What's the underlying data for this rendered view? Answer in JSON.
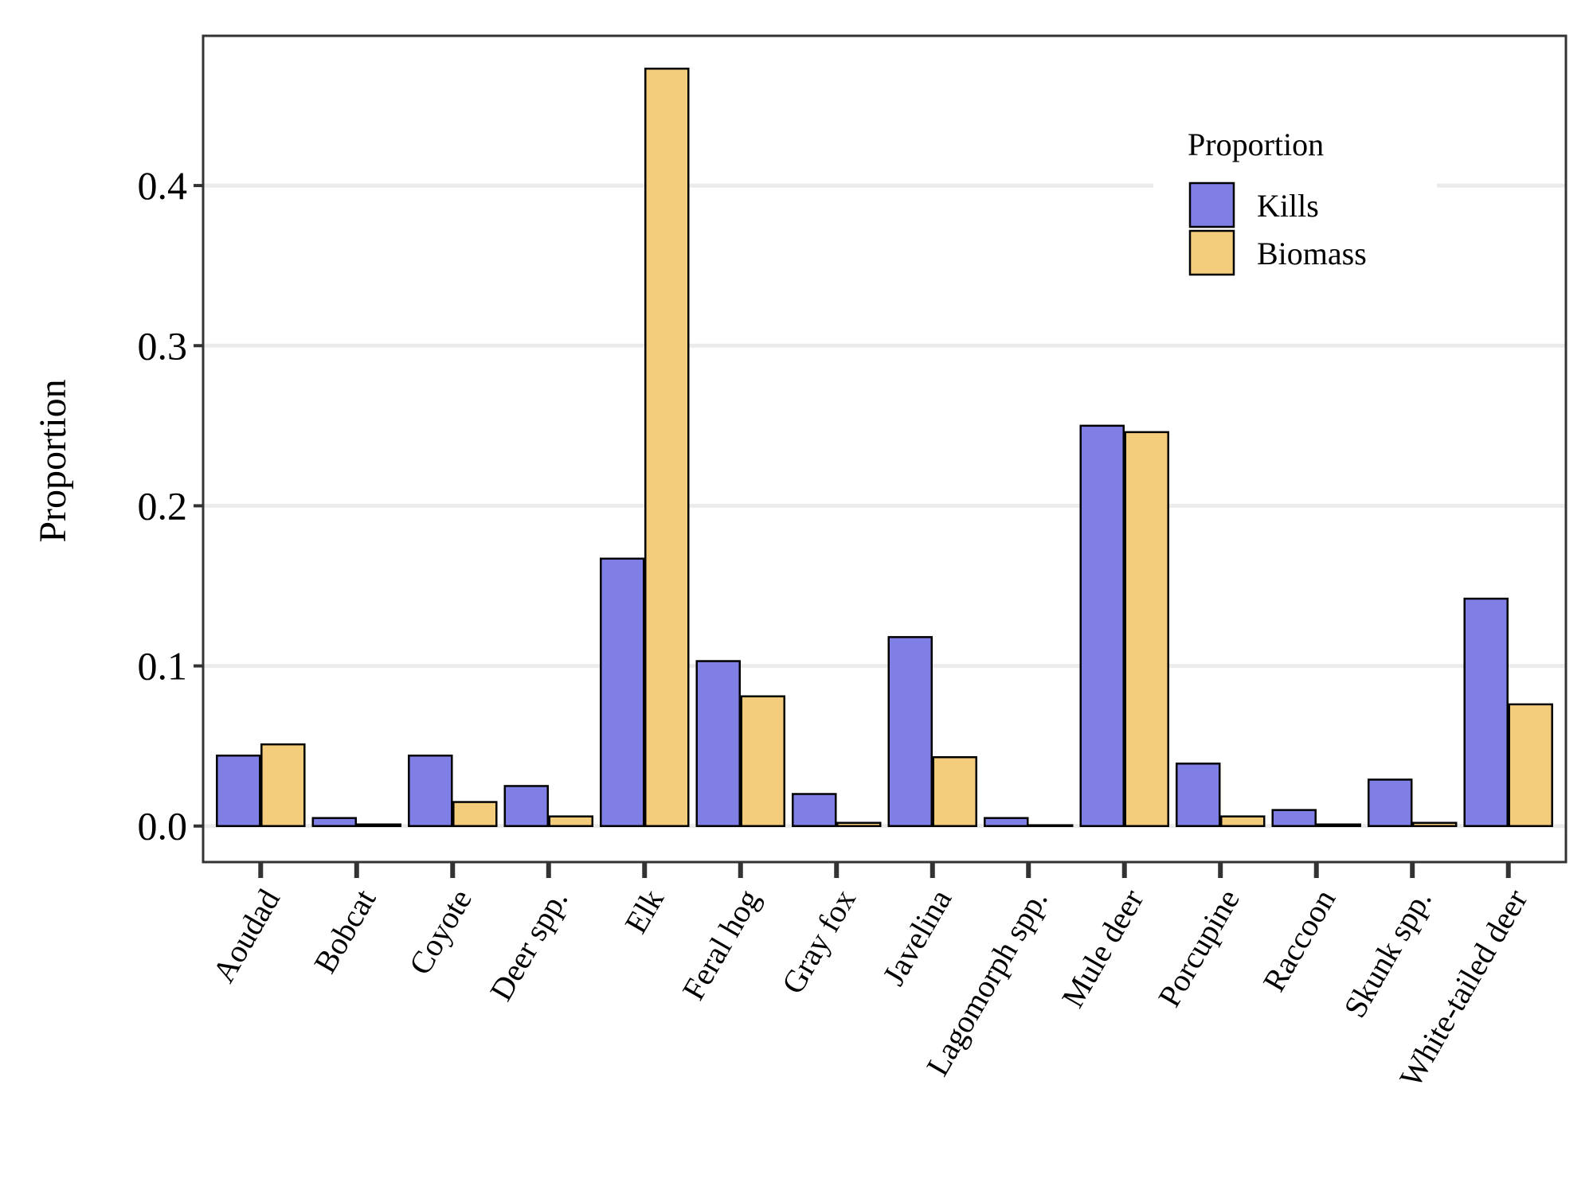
{
  "chart_data": {
    "type": "bar",
    "title": "",
    "xlabel": "",
    "ylabel": "Proportion",
    "ylim": [
      -0.0225,
      0.4935
    ],
    "yticks": [
      0.0,
      0.1,
      0.2,
      0.3,
      0.4
    ],
    "ytick_labels": [
      "0.0",
      "0.1",
      "0.2",
      "0.3",
      "0.4"
    ],
    "grid": "horizontal major lines",
    "legend": {
      "title": "Proportion",
      "placement": "top-right"
    },
    "categories": [
      "Aoudad",
      "Bobcat",
      "Coyote",
      "Deer spp.",
      "Elk",
      "Feral hog",
      "Gray fox",
      "Javelina",
      "Lagomorph spp.",
      "Mule deer",
      "Porcupine",
      "Raccoon",
      "Skunk spp.",
      "White-tailed deer"
    ],
    "series": [
      {
        "name": "Kills",
        "color": "#7f7fe6",
        "values": [
          0.044,
          0.005,
          0.044,
          0.025,
          0.167,
          0.103,
          0.02,
          0.118,
          0.005,
          0.25,
          0.039,
          0.01,
          0.029,
          0.142
        ]
      },
      {
        "name": "Biomass",
        "color": "#f3cc7c",
        "values": [
          0.051,
          0.001,
          0.015,
          0.006,
          0.473,
          0.081,
          0.002,
          0.043,
          0.0005,
          0.246,
          0.006,
          0.001,
          0.002,
          0.076
        ]
      }
    ]
  }
}
